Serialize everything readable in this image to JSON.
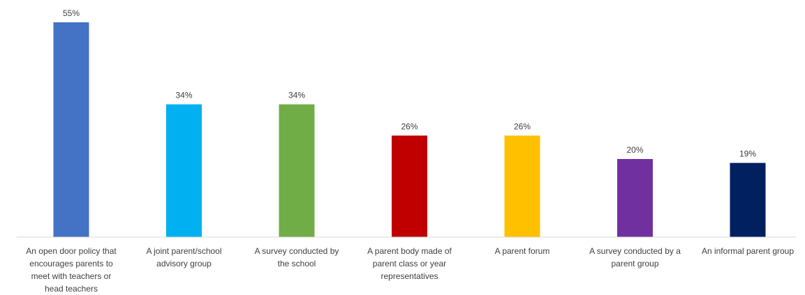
{
  "chart_data": {
    "type": "bar",
    "categories": [
      [
        "An open door policy that",
        "encourages parents to",
        "meet with teachers or",
        "head teachers"
      ],
      [
        "A joint parent/school",
        "advisory group"
      ],
      [
        "A survey conducted by",
        "the school"
      ],
      [
        "A parent body made of",
        "parent class or year",
        "representatives"
      ],
      [
        "A parent forum"
      ],
      [
        "A survey conducted by a",
        "parent group"
      ],
      [
        "An informal parent group"
      ]
    ],
    "values": [
      55,
      34,
      34,
      26,
      26,
      20,
      19
    ],
    "data_labels": [
      "55%",
      "34%",
      "34%",
      "26%",
      "26%",
      "20%",
      "19%"
    ],
    "colors": [
      "#4472C4",
      "#00B0F0",
      "#70AD47",
      "#C00000",
      "#FFC000",
      "#7030A0",
      "#002060"
    ],
    "ylim": [
      0,
      55
    ],
    "grid": false,
    "legend": "none"
  }
}
